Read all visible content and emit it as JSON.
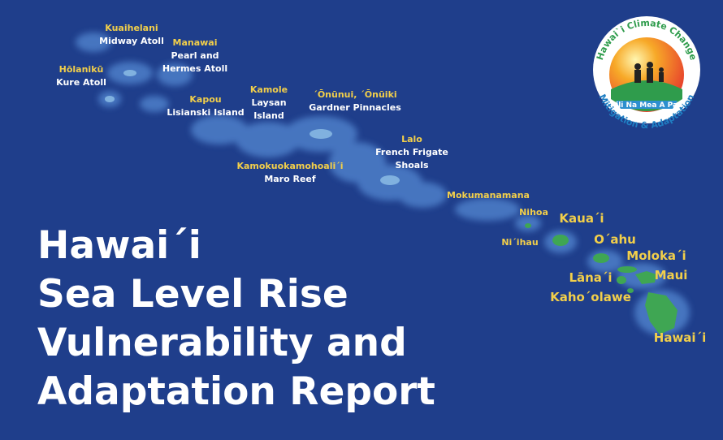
{
  "title_lines": [
    "Hawai´i",
    "Sea Level Rise",
    "Vulnerability and",
    "Adaptation Report"
  ],
  "logo": {
    "top_text": "Hawai`i Climate Change",
    "bottom_text": "Mitigation & Adaptation",
    "banner": "Pili Na Mea A Pau"
  },
  "labels": [
    {
      "hawaiian": "Kuaihelani",
      "english": [
        "Midway Atoll"
      ]
    },
    {
      "hawaiian": "Hōlanikū",
      "english": [
        "Kure Atoll"
      ]
    },
    {
      "hawaiian": "Manawai",
      "english": [
        "Pearl and",
        "Hermes Atoll"
      ]
    },
    {
      "hawaiian": "Kapou",
      "english": [
        "Lisianski Island"
      ]
    },
    {
      "hawaiian": "Kamole",
      "english": [
        "Laysan",
        "Island"
      ]
    },
    {
      "hawaiian": "´Ōnūnui, ´Ōnūiki",
      "english": [
        "Gardner Pinnacles"
      ]
    },
    {
      "hawaiian": "Kamokuokamohoali´i",
      "english": [
        "Maro Reef"
      ]
    },
    {
      "hawaiian": "Lalo",
      "english": [
        "French Frigate",
        "Shoals"
      ]
    },
    {
      "hawaiian": "Mokumanamana"
    },
    {
      "hawaiian": "Nihoa"
    },
    {
      "hawaiian": "Ni´ihau"
    },
    {
      "hawaiian": "Kaua´i"
    },
    {
      "hawaiian": "O´ahu"
    },
    {
      "hawaiian": "Moloka´i"
    },
    {
      "hawaiian": "Maui"
    },
    {
      "hawaiian": "Lāna´i"
    },
    {
      "hawaiian": "Kaho´olawe"
    },
    {
      "hawaiian": "Hawai´i"
    }
  ]
}
